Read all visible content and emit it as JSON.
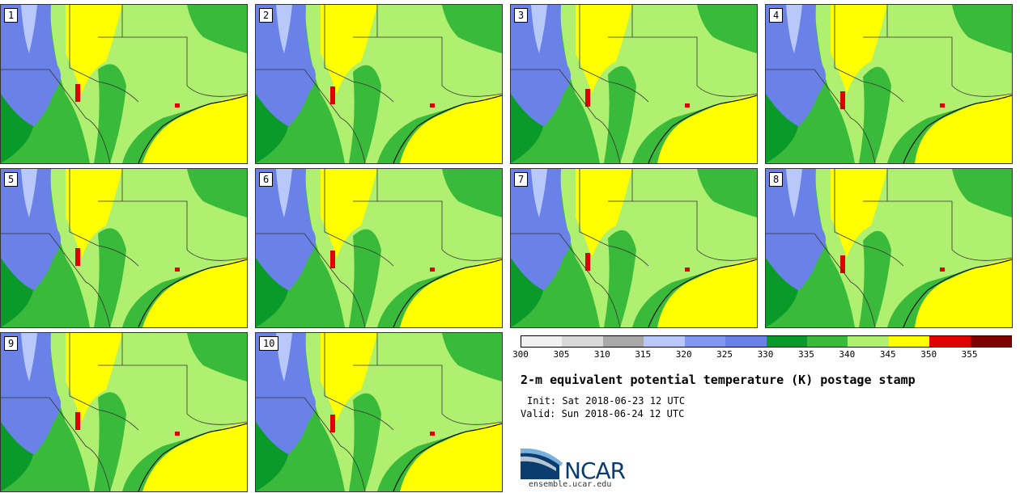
{
  "panels": [
    "1",
    "2",
    "3",
    "4",
    "5",
    "6",
    "7",
    "8",
    "9",
    "10"
  ],
  "colorbar": {
    "colors": [
      "#f0f0f0",
      "#d8d8d8",
      "#a8a8a8",
      "#b8c8f8",
      "#8098f0",
      "#6a82e8",
      "#0a9a2a",
      "#3aba3a",
      "#b0f070",
      "#ffff00",
      "#e00000",
      "#800000"
    ],
    "tick_labels": [
      "300",
      "305",
      "310",
      "315",
      "320",
      "325",
      "330",
      "335",
      "340",
      "345",
      "350",
      "355"
    ]
  },
  "title": "2-m equivalent potential temperature (K) postage stamp",
  "init": "Init: Sat 2018-06-23 12 UTC",
  "valid": "Valid: Sun 2018-06-24 12 UTC",
  "logo": {
    "text": "NCAR",
    "url": "ensemble.ucar.edu"
  }
}
